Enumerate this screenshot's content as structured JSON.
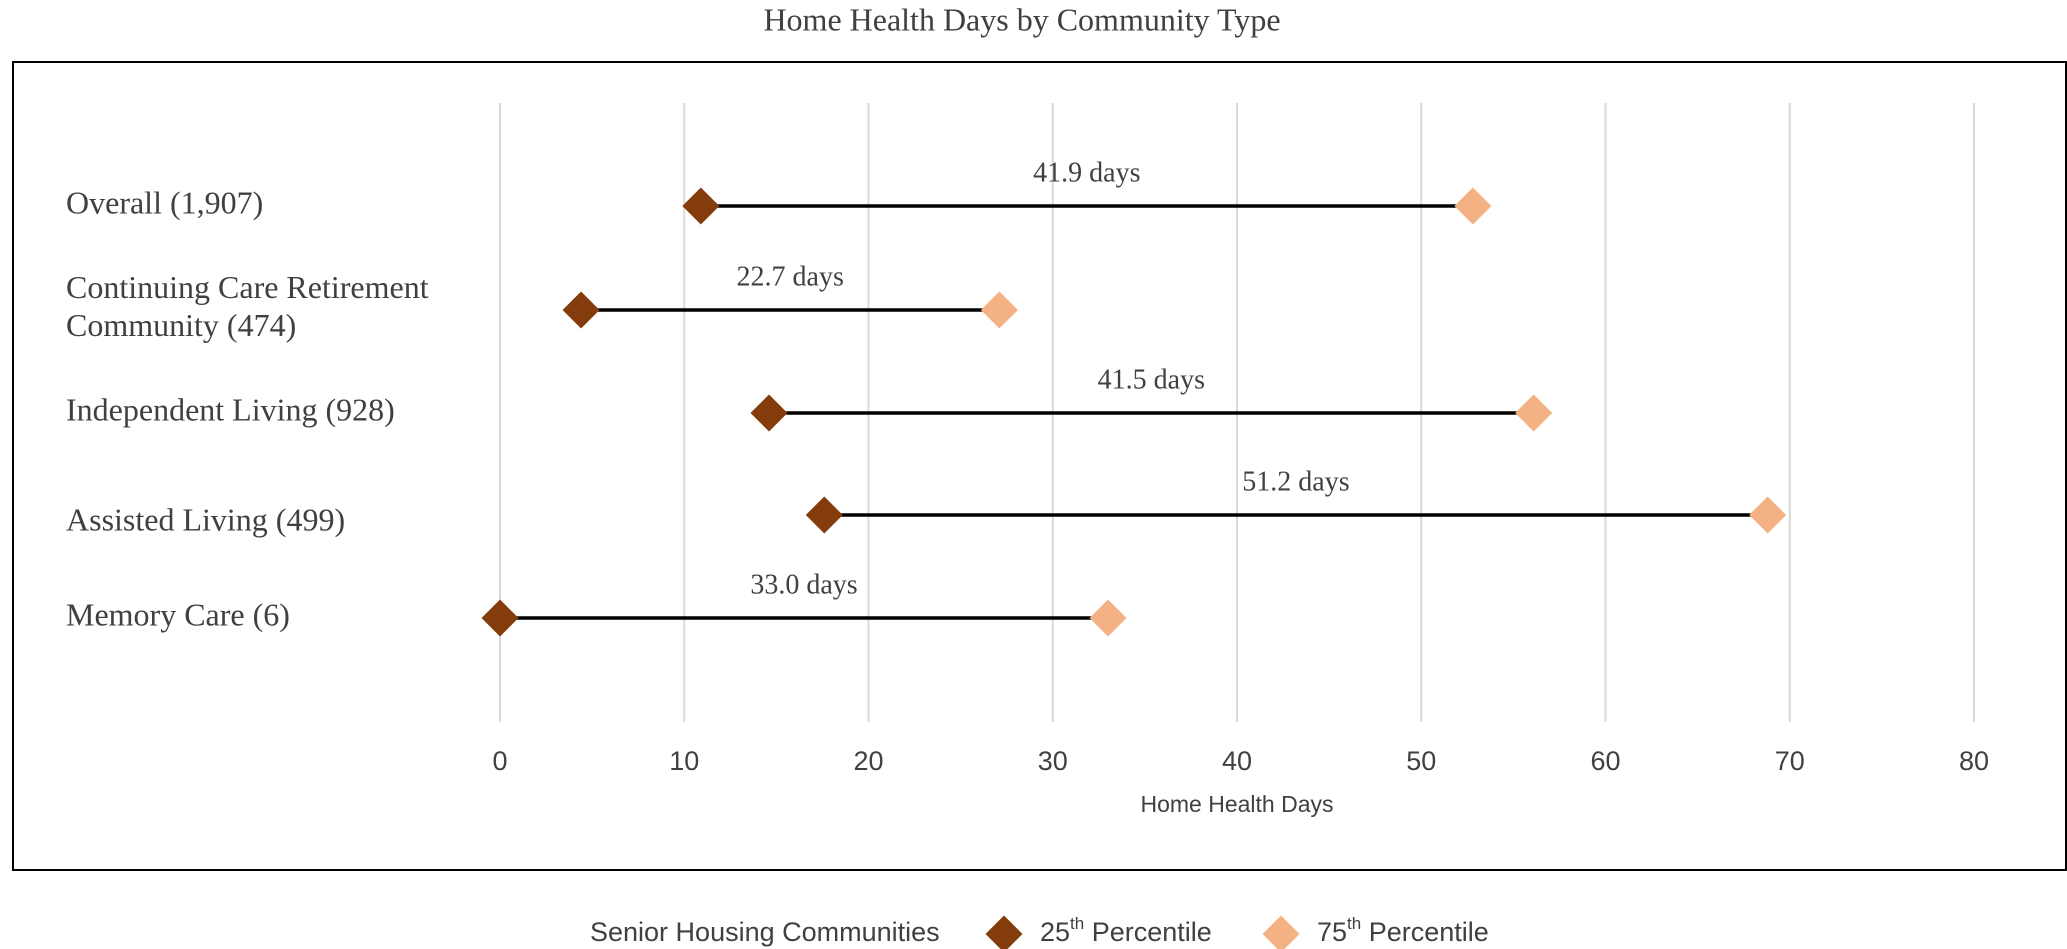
{
  "chart_data": {
    "type": "dumbbell",
    "title": "Home Health Days by Community Type",
    "categories": [
      "Overall (1,907)",
      "Continuing Care Retirement Community (474)",
      "Independent Living (928)",
      "Assisted Living (499)",
      "Memory Care (6)"
    ],
    "series": [
      {
        "name": "25th Percentile",
        "color": "#843c0c",
        "values": [
          10.9,
          4.4,
          14.6,
          17.6,
          0
        ]
      },
      {
        "name": "75th Percentile",
        "color": "#f4b183",
        "values": [
          52.8,
          27.1,
          56.1,
          68.8,
          33.0
        ]
      }
    ],
    "range_labels": [
      "41.9 days",
      "22.7 days",
      "41.5 days",
      "51.2 days",
      "33.0 days"
    ],
    "x_label": "Home Health Days",
    "legend_title": "Senior Housing Communities",
    "xlim": [
      0,
      80
    ],
    "xticks": [
      0,
      10,
      20,
      30,
      40,
      50,
      60,
      70,
      80
    ],
    "grid": true,
    "legend": "bottom"
  }
}
